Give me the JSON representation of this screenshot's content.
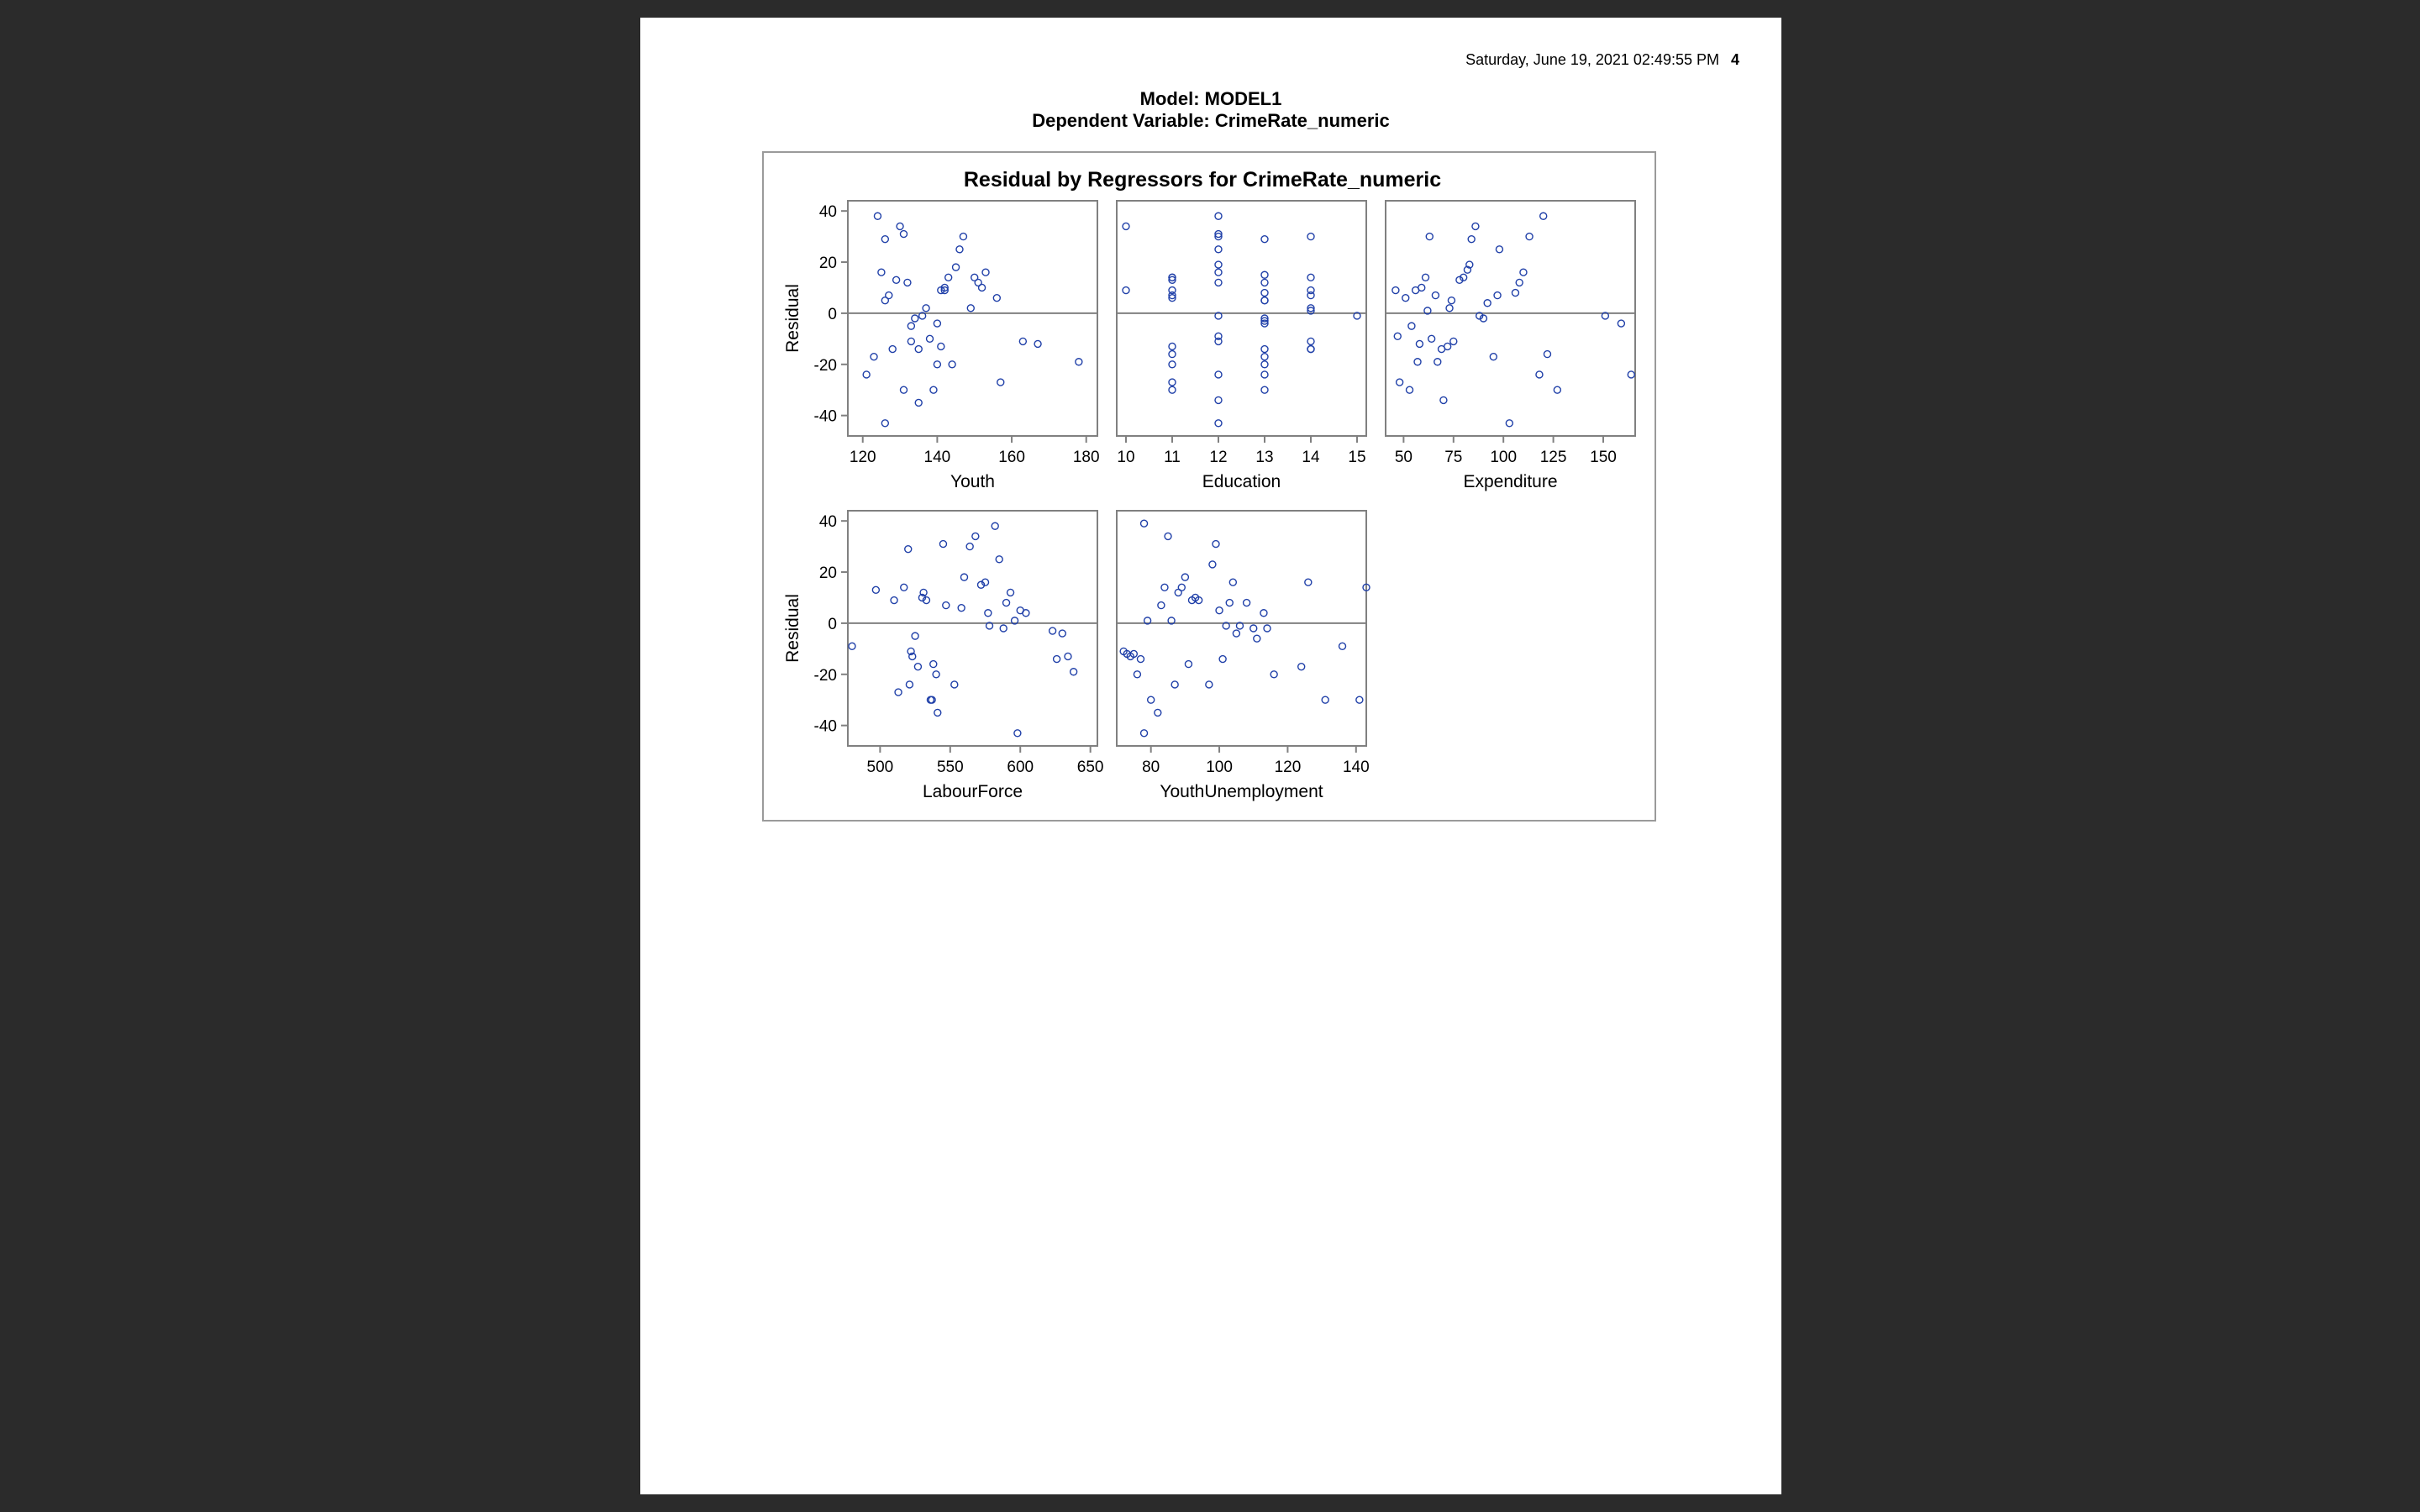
{
  "header": {
    "timestamp": "Saturday, June 19, 2021 02:49:55 PM",
    "page_number": "4"
  },
  "titles": {
    "model": "Model: MODEL1",
    "dependent": "Dependent Variable: CrimeRate_numeric"
  },
  "colors": {
    "marker": "#1f3fa8",
    "axis": "#808080",
    "reference_line": "#808080"
  },
  "chart_data": {
    "type": "scatter",
    "title": "Residual by Regressors for CrimeRate_numeric",
    "ylabel": "Residual",
    "ylim": [
      -48,
      44
    ],
    "yticks": [
      -40,
      -20,
      0,
      20,
      40
    ],
    "reference_line_y": 0,
    "grid": false,
    "panels": [
      {
        "xlabel": "Youth",
        "xlim": [
          116,
          183
        ],
        "xticks": [
          120,
          140,
          160,
          180
        ],
        "x": [
          124,
          126,
          127,
          125,
          126,
          129,
          131,
          130,
          132,
          134,
          133,
          133,
          135,
          137,
          136,
          138,
          140,
          141,
          142,
          143,
          141,
          142,
          145,
          146,
          147,
          149,
          150,
          151,
          152,
          153,
          156,
          157,
          163,
          167,
          178,
          121,
          123,
          128,
          131,
          135,
          139,
          140,
          144,
          126
        ],
        "y": [
          38,
          29,
          7,
          16,
          5,
          13,
          31,
          34,
          12,
          -2,
          -5,
          -11,
          -14,
          2,
          -1,
          -10,
          -4,
          -13,
          9,
          14,
          9,
          10,
          18,
          25,
          30,
          2,
          14,
          12,
          10,
          16,
          6,
          -27,
          -11,
          -12,
          -19,
          -24,
          -17,
          -14,
          -30,
          -35,
          -30,
          -20,
          -20,
          -43
        ]
      },
      {
        "xlabel": "Education",
        "xlim": [
          9.8,
          15.2
        ],
        "xticks": [
          10,
          11,
          12,
          13,
          14,
          15
        ],
        "x": [
          10,
          10,
          11,
          11,
          11,
          11,
          11,
          11,
          11,
          11,
          11,
          11,
          11,
          12,
          12,
          12,
          12,
          12,
          12,
          12,
          12,
          12,
          12,
          12,
          12,
          12,
          13,
          13,
          13,
          13,
          13,
          13,
          13,
          13,
          13,
          13,
          13,
          13,
          13,
          13,
          14,
          14,
          14,
          14,
          14,
          14,
          14,
          14,
          14,
          15
        ],
        "y": [
          34,
          9,
          14,
          13,
          9,
          7,
          6,
          -13,
          -16,
          -20,
          -27,
          -30,
          14,
          38,
          30,
          25,
          19,
          16,
          12,
          -1,
          -9,
          -11,
          -24,
          -34,
          -43,
          31,
          29,
          15,
          12,
          8,
          5,
          -2,
          -3,
          -4,
          -14,
          -17,
          -20,
          -24,
          -30,
          5,
          30,
          14,
          9,
          7,
          2,
          1,
          -11,
          -14,
          -14,
          -1
        ]
      },
      {
        "xlabel": "Expenditure",
        "xlim": [
          41,
          166
        ],
        "xticks": [
          50,
          75,
          100,
          125,
          150
        ],
        "x": [
          46,
          47,
          48,
          51,
          53,
          54,
          56,
          57,
          58,
          59,
          61,
          62,
          63,
          64,
          66,
          67,
          69,
          70,
          72,
          73,
          74,
          75,
          78,
          80,
          82,
          83,
          84,
          86,
          88,
          90,
          92,
          95,
          97,
          98,
          103,
          106,
          108,
          110,
          113,
          118,
          120,
          122,
          127,
          151,
          159,
          164
        ],
        "y": [
          9,
          -9,
          -27,
          6,
          -30,
          -5,
          9,
          -19,
          -12,
          10,
          14,
          1,
          30,
          -10,
          7,
          -19,
          -14,
          -34,
          -13,
          2,
          5,
          -11,
          13,
          14,
          17,
          19,
          29,
          34,
          -1,
          -2,
          4,
          -17,
          7,
          25,
          -43,
          8,
          12,
          16,
          30,
          -24,
          38,
          -16,
          -30,
          -1,
          -4,
          -24
        ]
      },
      {
        "xlabel": "LabourForce",
        "xlim": [
          477,
          655
        ],
        "xticks": [
          500,
          550,
          600,
          650
        ],
        "x": [
          480,
          497,
          510,
          513,
          517,
          520,
          521,
          522,
          523,
          525,
          527,
          530,
          531,
          533,
          536,
          537,
          538,
          540,
          541,
          545,
          547,
          553,
          558,
          560,
          564,
          568,
          572,
          575,
          577,
          578,
          582,
          585,
          588,
          590,
          593,
          596,
          598,
          600,
          604,
          623,
          626,
          630,
          634,
          638
        ],
        "y": [
          -9,
          13,
          9,
          -27,
          14,
          29,
          -24,
          -11,
          -13,
          -5,
          -17,
          10,
          12,
          9,
          -30,
          -30,
          -16,
          -20,
          -35,
          31,
          7,
          -24,
          6,
          18,
          30,
          34,
          15,
          16,
          4,
          -1,
          38,
          25,
          -2,
          8,
          12,
          1,
          -43,
          5,
          4,
          -3,
          -14,
          -4,
          -13,
          -19
        ]
      },
      {
        "xlabel": "YouthUnemployment",
        "xlim": [
          70,
          143
        ],
        "xticks": [
          80,
          100,
          120,
          140
        ],
        "x": [
          72,
          73,
          74,
          75,
          76,
          77,
          78,
          79,
          80,
          82,
          83,
          84,
          85,
          86,
          87,
          88,
          89,
          90,
          91,
          92,
          93,
          94,
          97,
          98,
          99,
          100,
          101,
          102,
          103,
          104,
          105,
          106,
          108,
          110,
          111,
          113,
          114,
          116,
          124,
          126,
          131,
          136,
          141,
          143,
          78
        ],
        "y": [
          -11,
          -12,
          -13,
          -12,
          -20,
          -14,
          39,
          1,
          -30,
          -35,
          7,
          14,
          34,
          1,
          -24,
          12,
          14,
          18,
          -16,
          9,
          10,
          9,
          -24,
          23,
          31,
          5,
          -14,
          -1,
          8,
          16,
          -4,
          -1,
          8,
          -2,
          -6,
          4,
          -2,
          -20,
          -17,
          16,
          -30,
          -9,
          -30,
          14,
          -43
        ]
      }
    ]
  }
}
